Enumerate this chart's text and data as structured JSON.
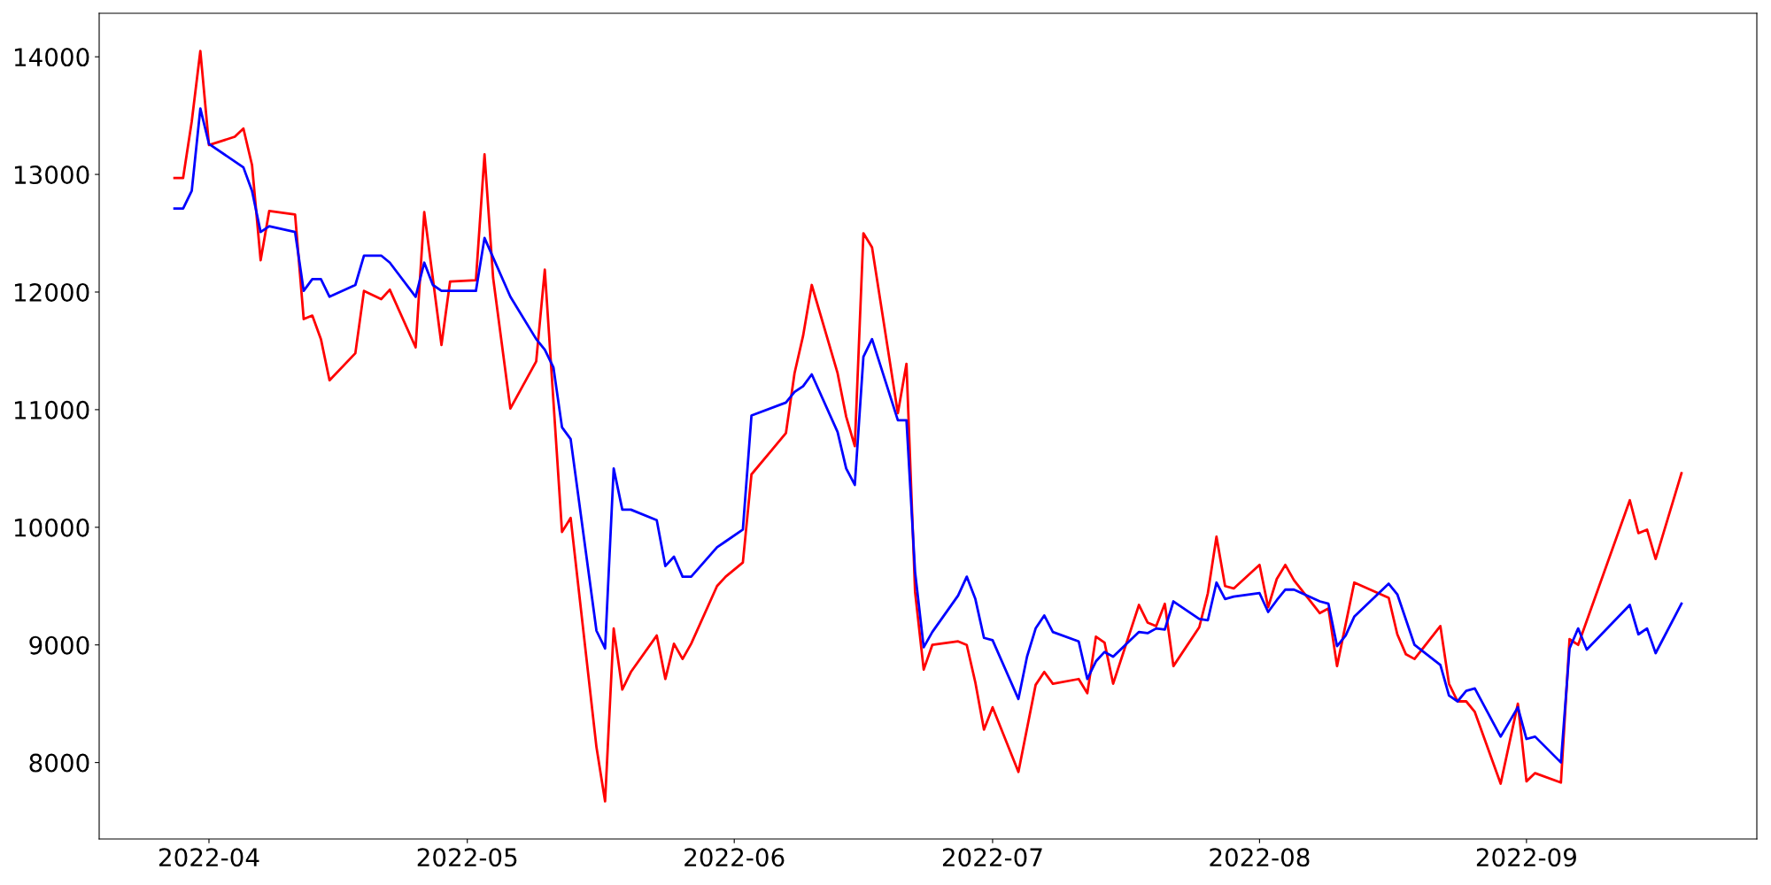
{
  "chart_data": {
    "type": "line",
    "xlim": [
      "2022-03-19T06:00",
      "2022-09-27T18:00"
    ],
    "ylim": [
      7350,
      14370
    ],
    "xticks": [
      "2022-04",
      "2022-05",
      "2022-06",
      "2022-07",
      "2022-08",
      "2022-09"
    ],
    "yticks": [
      8000,
      9000,
      10000,
      11000,
      12000,
      13000,
      14000
    ],
    "grid": false,
    "marker": "none",
    "line_style": "solid",
    "series": [
      {
        "color": "#ff0000",
        "x": [
          "2022-03-28",
          "2022-03-29",
          "2022-03-30",
          "2022-03-31",
          "2022-04-01",
          "2022-04-04",
          "2022-04-05",
          "2022-04-06",
          "2022-04-07",
          "2022-04-08",
          "2022-04-11",
          "2022-04-12",
          "2022-04-13",
          "2022-04-14",
          "2022-04-15",
          "2022-04-18",
          "2022-04-19",
          "2022-04-21",
          "2022-04-22",
          "2022-04-25",
          "2022-04-26",
          "2022-04-28",
          "2022-04-29",
          "2022-05-02",
          "2022-05-03",
          "2022-05-04",
          "2022-05-06",
          "2022-05-09",
          "2022-05-10",
          "2022-05-12",
          "2022-05-13",
          "2022-05-16",
          "2022-05-17",
          "2022-05-18",
          "2022-05-19",
          "2022-05-20",
          "2022-05-23",
          "2022-05-24",
          "2022-05-25",
          "2022-05-26",
          "2022-05-27",
          "2022-05-30",
          "2022-05-31",
          "2022-06-02",
          "2022-06-03",
          "2022-06-07",
          "2022-06-08",
          "2022-06-09",
          "2022-06-10",
          "2022-06-13",
          "2022-06-14",
          "2022-06-15",
          "2022-06-16",
          "2022-06-17",
          "2022-06-20",
          "2022-06-21",
          "2022-06-22",
          "2022-06-23",
          "2022-06-24",
          "2022-06-27",
          "2022-06-28",
          "2022-06-29",
          "2022-06-30",
          "2022-07-01",
          "2022-07-04",
          "2022-07-06",
          "2022-07-07",
          "2022-07-08",
          "2022-07-11",
          "2022-07-12",
          "2022-07-13",
          "2022-07-14",
          "2022-07-15",
          "2022-07-18",
          "2022-07-19",
          "2022-07-20",
          "2022-07-21",
          "2022-07-22",
          "2022-07-25",
          "2022-07-26",
          "2022-07-27",
          "2022-07-28",
          "2022-07-29",
          "2022-08-01",
          "2022-08-02",
          "2022-08-03",
          "2022-08-04",
          "2022-08-05",
          "2022-08-08",
          "2022-08-09",
          "2022-08-10",
          "2022-08-12",
          "2022-08-16",
          "2022-08-17",
          "2022-08-18",
          "2022-08-19",
          "2022-08-22",
          "2022-08-23",
          "2022-08-24",
          "2022-08-25",
          "2022-08-26",
          "2022-08-29",
          "2022-08-31",
          "2022-09-01",
          "2022-09-02",
          "2022-09-05",
          "2022-09-06",
          "2022-09-07",
          "2022-09-13",
          "2022-09-14",
          "2022-09-15",
          "2022-09-16",
          "2022-09-19"
        ],
        "values": [
          12970,
          12970,
          13450,
          14050,
          13250,
          13320,
          13390,
          13080,
          12270,
          12690,
          12660,
          11770,
          11800,
          11600,
          11250,
          11480,
          12010,
          11940,
          12020,
          11530,
          12680,
          11550,
          12090,
          12100,
          13170,
          12120,
          11010,
          11410,
          12190,
          9960,
          10080,
          8130,
          7670,
          9140,
          8620,
          8770,
          9080,
          8710,
          9010,
          8880,
          9010,
          9500,
          9580,
          9700,
          10450,
          10800,
          11310,
          11630,
          12060,
          11310,
          10940,
          10690,
          12500,
          12380,
          10970,
          11390,
          9450,
          8790,
          9000,
          9030,
          9000,
          8680,
          8280,
          8470,
          7920,
          8660,
          8770,
          8670,
          8710,
          8590,
          9070,
          9020,
          8670,
          9340,
          9190,
          9160,
          9350,
          8820,
          9150,
          9440,
          9920,
          9500,
          9480,
          9680,
          9320,
          9560,
          9680,
          9550,
          9270,
          9310,
          8820,
          9530,
          9400,
          9090,
          8920,
          8880,
          9160,
          8670,
          8520,
          8520,
          8430,
          7820,
          8500,
          7840,
          7910,
          7830,
          9050,
          9000,
          10230,
          9950,
          9980,
          9730,
          10460
        ]
      },
      {
        "color": "#0000ff",
        "x": [
          "2022-03-28",
          "2022-03-29",
          "2022-03-30",
          "2022-03-31",
          "2022-04-01",
          "2022-04-05",
          "2022-04-06",
          "2022-04-07",
          "2022-04-08",
          "2022-04-11",
          "2022-04-12",
          "2022-04-13",
          "2022-04-14",
          "2022-04-15",
          "2022-04-18",
          "2022-04-19",
          "2022-04-21",
          "2022-04-22",
          "2022-04-25",
          "2022-04-26",
          "2022-04-27",
          "2022-04-28",
          "2022-05-02",
          "2022-05-03",
          "2022-05-06",
          "2022-05-09",
          "2022-05-10",
          "2022-05-11",
          "2022-05-12",
          "2022-05-13",
          "2022-05-16",
          "2022-05-17",
          "2022-05-18",
          "2022-05-19",
          "2022-05-20",
          "2022-05-23",
          "2022-05-24",
          "2022-05-25",
          "2022-05-26",
          "2022-05-27",
          "2022-05-30",
          "2022-05-31",
          "2022-06-02",
          "2022-06-03",
          "2022-06-07",
          "2022-06-08",
          "2022-06-09",
          "2022-06-10",
          "2022-06-13",
          "2022-06-14",
          "2022-06-15",
          "2022-06-16",
          "2022-06-17",
          "2022-06-20",
          "2022-06-21",
          "2022-06-22",
          "2022-06-23",
          "2022-06-24",
          "2022-06-27",
          "2022-06-28",
          "2022-06-29",
          "2022-06-30",
          "2022-07-01",
          "2022-07-04",
          "2022-07-05",
          "2022-07-06",
          "2022-07-07",
          "2022-07-08",
          "2022-07-11",
          "2022-07-12",
          "2022-07-13",
          "2022-07-14",
          "2022-07-15",
          "2022-07-18",
          "2022-07-19",
          "2022-07-20",
          "2022-07-21",
          "2022-07-22",
          "2022-07-25",
          "2022-07-26",
          "2022-07-27",
          "2022-07-28",
          "2022-07-29",
          "2022-08-01",
          "2022-08-02",
          "2022-08-03",
          "2022-08-04",
          "2022-08-05",
          "2022-08-08",
          "2022-08-09",
          "2022-08-10",
          "2022-08-11",
          "2022-08-12",
          "2022-08-16",
          "2022-08-17",
          "2022-08-19",
          "2022-08-22",
          "2022-08-23",
          "2022-08-24",
          "2022-08-25",
          "2022-08-26",
          "2022-08-29",
          "2022-08-31",
          "2022-09-01",
          "2022-09-02",
          "2022-09-05",
          "2022-09-06",
          "2022-09-07",
          "2022-09-08",
          "2022-09-13",
          "2022-09-14",
          "2022-09-15",
          "2022-09-16",
          "2022-09-19"
        ],
        "values": [
          12710,
          12710,
          12860,
          13560,
          13260,
          13060,
          12860,
          12510,
          12560,
          12510,
          12010,
          12110,
          12110,
          11960,
          12060,
          12310,
          12310,
          12250,
          11960,
          12250,
          12060,
          12010,
          12010,
          12460,
          11960,
          11600,
          11510,
          11360,
          10850,
          10750,
          9120,
          8970,
          10500,
          10150,
          10150,
          10060,
          9670,
          9750,
          9580,
          9580,
          9830,
          9880,
          9980,
          10950,
          11060,
          11150,
          11200,
          11300,
          10810,
          10500,
          10360,
          11450,
          11600,
          10910,
          10910,
          9620,
          8980,
          9110,
          9420,
          9580,
          9390,
          9060,
          9040,
          8540,
          8900,
          9140,
          9250,
          9110,
          9030,
          8710,
          8860,
          8940,
          8900,
          9110,
          9100,
          9140,
          9130,
          9370,
          9220,
          9210,
          9530,
          9390,
          9410,
          9440,
          9280,
          9380,
          9470,
          9470,
          9370,
          9350,
          8990,
          9080,
          9240,
          9520,
          9430,
          9000,
          8830,
          8570,
          8520,
          8610,
          8630,
          8220,
          8470,
          8200,
          8220,
          8000,
          8970,
          9140,
          8960,
          9340,
          9090,
          9140,
          8930,
          9350
        ]
      }
    ]
  }
}
